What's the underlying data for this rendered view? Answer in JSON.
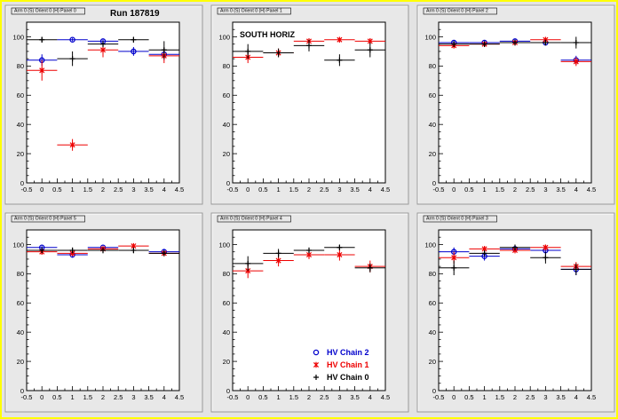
{
  "canvas": {
    "run_label": "Run 187819",
    "colors": {
      "chain2": "#0000cc",
      "chain1": "#ee0000",
      "chain0": "#000000",
      "frame": "#ffff00"
    }
  },
  "legend": {
    "entries": [
      {
        "label": "HV Chain 2",
        "series": 0
      },
      {
        "label": "HV Chain 1",
        "series": 1
      },
      {
        "label": "HV Chain 0",
        "series": 2
      }
    ]
  },
  "chart_data": [
    {
      "type": "scatter",
      "title": "Arm 0 (S) Orient 0 (H) Panel 0",
      "annotation": "",
      "xlim": [
        -0.5,
        4.5
      ],
      "ylim": [
        0,
        110
      ],
      "xticks": [
        "-0.5",
        "0",
        "0.5",
        "1",
        "1.5",
        "2",
        "2.5",
        "3",
        "3.5",
        "4",
        "4.5"
      ],
      "yticks": [
        "0",
        "20",
        "40",
        "60",
        "80",
        "100"
      ],
      "series": [
        {
          "name": "HV Chain 2",
          "marker": "circle",
          "points": [
            [
              0,
              84,
              4
            ],
            [
              1,
              98,
              1
            ],
            [
              2,
              97,
              1
            ],
            [
              3,
              90,
              3
            ],
            [
              4,
              88,
              4
            ]
          ]
        },
        {
          "name": "HV Chain 1",
          "marker": "star",
          "points": [
            [
              0,
              77,
              7
            ],
            [
              1,
              26,
              4
            ],
            [
              2,
              91,
              5
            ],
            [
              4,
              87,
              5
            ]
          ]
        },
        {
          "name": "HV Chain 0",
          "marker": "plus",
          "points": [
            [
              0,
              98,
              2
            ],
            [
              1,
              85,
              5
            ],
            [
              2,
              95,
              2
            ],
            [
              3,
              98,
              2
            ],
            [
              4,
              91,
              6
            ]
          ]
        }
      ]
    },
    {
      "type": "scatter",
      "title": "Arm 0 (S) Orient 0 (H) Panel 1",
      "annotation": "SOUTH HORIZ",
      "xlim": [
        -0.5,
        4.5
      ],
      "ylim": [
        0,
        110
      ],
      "xticks": [
        "-0.5",
        "0",
        "0.5",
        "1",
        "1.5",
        "2",
        "2.5",
        "3",
        "3.5",
        "4",
        "4.5"
      ],
      "yticks": [
        "0",
        "20",
        "40",
        "60",
        "80",
        "100"
      ],
      "series": [
        {
          "name": "HV Chain 2",
          "marker": "circle",
          "points": []
        },
        {
          "name": "HV Chain 1",
          "marker": "star",
          "points": [
            [
              0,
              86,
              4
            ],
            [
              1,
              89,
              3
            ],
            [
              2,
              97,
              2
            ],
            [
              3,
              98,
              1
            ],
            [
              4,
              97,
              2
            ]
          ]
        },
        {
          "name": "HV Chain 0",
          "marker": "plus",
          "points": [
            [
              0,
              90,
              5
            ],
            [
              1,
              89,
              3
            ],
            [
              2,
              94,
              4
            ],
            [
              3,
              84,
              4
            ],
            [
              4,
              91,
              5
            ]
          ]
        }
      ]
    },
    {
      "type": "scatter",
      "title": "Arm 0 (S) Orient 0 (H) Panel 2",
      "annotation": "",
      "xlim": [
        -0.5,
        4.5
      ],
      "ylim": [
        0,
        110
      ],
      "xticks": [
        "-0.5",
        "0",
        "0.5",
        "1",
        "1.5",
        "2",
        "2.5",
        "3",
        "3.5",
        "4",
        "4.5"
      ],
      "yticks": [
        "0",
        "20",
        "40",
        "60",
        "80",
        "100"
      ],
      "series": [
        {
          "name": "HV Chain 2",
          "marker": "circle",
          "points": [
            [
              0,
              96,
              1
            ],
            [
              1,
              96,
              1
            ],
            [
              2,
              97,
              1
            ],
            [
              3,
              96,
              1
            ],
            [
              4,
              84,
              3
            ]
          ]
        },
        {
          "name": "HV Chain 1",
          "marker": "star",
          "points": [
            [
              0,
              94,
              2
            ],
            [
              1,
              95,
              1
            ],
            [
              2,
              96,
              1
            ],
            [
              3,
              98,
              1
            ],
            [
              4,
              83,
              3
            ]
          ]
        },
        {
          "name": "HV Chain 0",
          "marker": "plus",
          "points": [
            [
              0,
              95,
              2
            ],
            [
              1,
              95,
              2
            ],
            [
              2,
              96,
              2
            ],
            [
              3,
              96,
              2
            ],
            [
              4,
              96,
              4
            ]
          ]
        }
      ]
    },
    {
      "type": "scatter",
      "title": "Arm 0 (S) Orient 0 (H) Panel 5",
      "annotation": "",
      "xlim": [
        -0.5,
        4.5
      ],
      "ylim": [
        0,
        110
      ],
      "xticks": [
        "-0.5",
        "0",
        "0.5",
        "1",
        "1.5",
        "2",
        "2.5",
        "3",
        "3.5",
        "4",
        "4.5"
      ],
      "yticks": [
        "0",
        "20",
        "40",
        "60",
        "80",
        "100"
      ],
      "series": [
        {
          "name": "HV Chain 2",
          "marker": "circle",
          "points": [
            [
              0,
              98,
              1
            ],
            [
              1,
              93,
              2
            ],
            [
              2,
              98,
              1
            ],
            [
              4,
              95,
              2
            ]
          ]
        },
        {
          "name": "HV Chain 1",
          "marker": "star",
          "points": [
            [
              0,
              95,
              2
            ],
            [
              1,
              94,
              2
            ],
            [
              2,
              97,
              1
            ],
            [
              3,
              99,
              1
            ],
            [
              4,
              94,
              2
            ]
          ]
        },
        {
          "name": "HV Chain 0",
          "marker": "plus",
          "points": [
            [
              0,
              96,
              2
            ],
            [
              1,
              96,
              2
            ],
            [
              2,
              96,
              2
            ],
            [
              3,
              96,
              2
            ],
            [
              4,
              94,
              2
            ]
          ]
        }
      ]
    },
    {
      "type": "scatter",
      "title": "Arm 0 (S) Orient 0 (H) Panel 4",
      "annotation": "",
      "xlim": [
        -0.5,
        4.5
      ],
      "ylim": [
        0,
        110
      ],
      "xticks": [
        "-0.5",
        "0",
        "0.5",
        "1",
        "1.5",
        "2",
        "2.5",
        "3",
        "3.5",
        "4",
        "4.5"
      ],
      "yticks": [
        "0",
        "20",
        "40",
        "60",
        "80",
        "100"
      ],
      "series": [
        {
          "name": "HV Chain 2",
          "marker": "circle",
          "points": []
        },
        {
          "name": "HV Chain 1",
          "marker": "star",
          "points": [
            [
              0,
              82,
              5
            ],
            [
              1,
              89,
              4
            ],
            [
              2,
              93,
              3
            ],
            [
              3,
              93,
              4
            ],
            [
              4,
              85,
              4
            ]
          ]
        },
        {
          "name": "HV Chain 0",
          "marker": "plus",
          "points": [
            [
              0,
              87,
              5
            ],
            [
              1,
              94,
              3
            ],
            [
              2,
              96,
              2
            ],
            [
              3,
              98,
              2
            ],
            [
              4,
              84,
              3
            ]
          ]
        }
      ]
    },
    {
      "type": "scatter",
      "title": "Arm 0 (S) Orient 0 (H) Panel 3",
      "annotation": "",
      "xlim": [
        -0.5,
        4.5
      ],
      "ylim": [
        0,
        110
      ],
      "xticks": [
        "-0.5",
        "0",
        "0.5",
        "1",
        "1.5",
        "2",
        "2.5",
        "3",
        "3.5",
        "4",
        "4.5"
      ],
      "yticks": [
        "0",
        "20",
        "40",
        "60",
        "80",
        "100"
      ],
      "series": [
        {
          "name": "HV Chain 2",
          "marker": "circle",
          "points": [
            [
              0,
              95,
              3
            ],
            [
              1,
              92,
              3
            ],
            [
              2,
              97,
              2
            ],
            [
              3,
              96,
              3
            ],
            [
              4,
              83,
              4
            ]
          ]
        },
        {
          "name": "HV Chain 1",
          "marker": "star",
          "points": [
            [
              0,
              91,
              4
            ],
            [
              1,
              97,
              2
            ],
            [
              2,
              96,
              2
            ],
            [
              3,
              98,
              2
            ],
            [
              4,
              85,
              3
            ]
          ]
        },
        {
          "name": "HV Chain 0",
          "marker": "plus",
          "points": [
            [
              0,
              84,
              5
            ],
            [
              1,
              94,
              2
            ],
            [
              2,
              98,
              2
            ],
            [
              3,
              91,
              4
            ],
            [
              4,
              83,
              4
            ]
          ]
        }
      ]
    }
  ]
}
